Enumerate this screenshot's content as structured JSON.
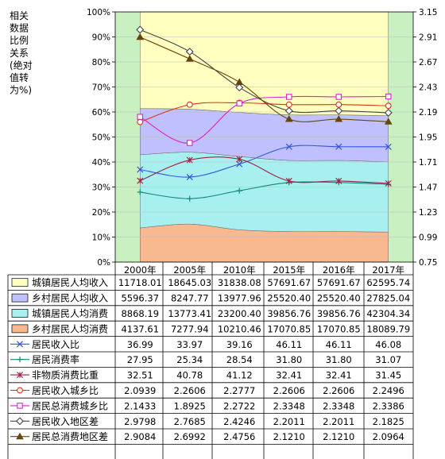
{
  "chart_data": {
    "type": "area",
    "title": "",
    "y_axis_label_lines": [
      "相关",
      "数据",
      "比例",
      "关系",
      "(绝对",
      "值转",
      "为%)"
    ],
    "categories": [
      "2000年",
      "2005年",
      "2010年",
      "2015年",
      "2016年",
      "2017年"
    ],
    "left_axis": {
      "ticks": [
        "0%",
        "10%",
        "20%",
        "30%",
        "40%",
        "50%",
        "60%",
        "70%",
        "80%",
        "90%",
        "100%"
      ],
      "ylim": [
        0,
        100
      ]
    },
    "right_axis": {
      "ticks": [
        "0.75",
        "0.99",
        "1.23",
        "1.47",
        "1.71",
        "1.95",
        "2.19",
        "2.43",
        "2.67",
        "2.91",
        "3.15"
      ],
      "ylim": [
        0.75,
        3.15
      ]
    },
    "area_series": [
      {
        "name": "城镇居民人均收入",
        "color": "#ffffc0",
        "values": [
          11718.01,
          18645.03,
          31838.08,
          57691.67,
          57691.67,
          62595.74
        ],
        "labels": [
          "11718.01",
          "18645.03",
          "31838.08",
          "57691.67",
          "57691.67",
          "62595.74"
        ]
      },
      {
        "name": "乡村居民人均收入",
        "color": "#c0c0ff",
        "values": [
          5596.37,
          8247.77,
          13977.96,
          25520.4,
          25520.4,
          27825.04
        ],
        "labels": [
          "5596.37",
          "8247.77",
          "13977.96",
          "25520.40",
          "25520.40",
          "27825.04"
        ]
      },
      {
        "name": "城镇居民人均消费",
        "color": "#a8f0f0",
        "values": [
          8868.19,
          13773.41,
          23200.4,
          39856.76,
          39856.76,
          42304.34
        ],
        "labels": [
          "8868.19",
          "13773.41",
          "23200.40",
          "39856.76",
          "39856.76",
          "42304.34"
        ]
      },
      {
        "name": "乡村居民人均消费",
        "color": "#f8b890",
        "values": [
          4137.61,
          7277.94,
          10210.46,
          17070.85,
          17070.85,
          18089.79
        ],
        "labels": [
          "4137.61",
          "7277.94",
          "10210.46",
          "17070.85",
          "17070.85",
          "18089.79"
        ]
      }
    ],
    "line_series": [
      {
        "name": "居民收入比",
        "axis": "left",
        "color": "#3355dd",
        "marker": "x",
        "values": [
          36.99,
          33.97,
          39.16,
          46.11,
          46.11,
          46.08
        ],
        "labels": [
          "36.99",
          "33.97",
          "39.16",
          "46.11",
          "46.11",
          "46.08"
        ]
      },
      {
        "name": "居民消费率",
        "axis": "left",
        "color": "#118877",
        "marker": "plus",
        "values": [
          27.95,
          25.34,
          28.54,
          31.8,
          31.8,
          31.07
        ],
        "labels": [
          "27.95",
          "25.34",
          "28.54",
          "31.80",
          "31.80",
          "31.07"
        ]
      },
      {
        "name": "非物质消费比重",
        "axis": "left",
        "color": "#992244",
        "marker": "star",
        "values": [
          32.51,
          40.78,
          41.12,
          32.41,
          32.41,
          31.45
        ],
        "labels": [
          "32.51",
          "40.78",
          "41.12",
          "32.41",
          "32.41",
          "31.45"
        ]
      },
      {
        "name": "居民收入城乡比",
        "axis": "right",
        "color": "#dd3311",
        "marker": "circle",
        "values": [
          2.0939,
          2.2606,
          2.2777,
          2.2606,
          2.2606,
          2.2496
        ],
        "labels": [
          "2.0939",
          "2.2606",
          "2.2777",
          "2.2606",
          "2.2606",
          "2.2496"
        ]
      },
      {
        "name": "居民总消费城乡比",
        "axis": "right",
        "color": "#dd22cc",
        "marker": "square",
        "values": [
          2.1433,
          1.8925,
          2.2722,
          2.3348,
          2.3348,
          2.3386
        ],
        "labels": [
          "2.1433",
          "1.8925",
          "2.2722",
          "2.3348",
          "2.3348",
          "2.3386"
        ]
      },
      {
        "name": "居民收入地区差",
        "axis": "right",
        "color": "#444444",
        "marker": "diamond",
        "values": [
          2.9798,
          2.7685,
          2.4246,
          2.2011,
          2.2011,
          2.1825
        ],
        "labels": [
          "2.9798",
          "2.7685",
          "2.4246",
          "2.2011",
          "2.2011",
          "2.1825"
        ]
      },
      {
        "name": "居民总消费地区差",
        "axis": "right",
        "color": "#664411",
        "marker": "triangle",
        "values": [
          2.9084,
          2.6992,
          2.4756,
          2.121,
          2.121,
          2.0964
        ],
        "labels": [
          "2.9084",
          "2.6992",
          "2.4756",
          "2.1210",
          "2.1210",
          "2.0964"
        ]
      }
    ],
    "colors": {
      "outer_bands": "#c8f0c0",
      "grid": "#bbbbbb",
      "axis": "#000000"
    }
  }
}
